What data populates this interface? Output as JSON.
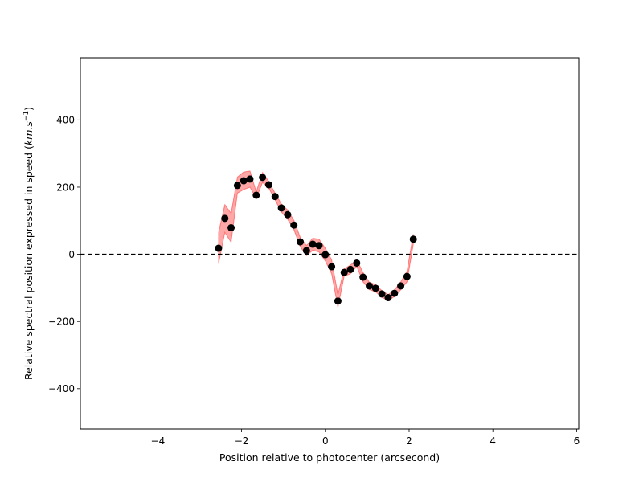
{
  "chart_data": {
    "type": "scatter",
    "xlabel": "Position relative to photocenter (arcsecond)",
    "ylabel_parts": {
      "prefix": "Relative spectral position expressed in speed (",
      "unit_base": "km.s",
      "unit_exponent": "−1",
      "suffix": ")"
    },
    "xlim": [
      -5.85,
      6.05
    ],
    "ylim": [
      -520,
      585
    ],
    "x_ticks": [
      -4,
      -2,
      0,
      2,
      4,
      6
    ],
    "x_tick_labels": [
      "−4",
      "−2",
      "0",
      "2",
      "4",
      "6"
    ],
    "y_ticks": [
      -400,
      -200,
      0,
      200,
      400
    ],
    "y_tick_labels": [
      "−400",
      "−200",
      "0",
      "200",
      "400"
    ],
    "reference_line_y": 0,
    "grid": false,
    "colors": {
      "points": "#000000",
      "band": "#ff0000",
      "reference_line": "#000000"
    },
    "series": [
      {
        "x": [
          -2.55,
          -2.4,
          -2.25,
          -2.1,
          -1.95,
          -1.8,
          -1.65,
          -1.5,
          -1.35,
          -1.2,
          -1.05,
          -0.9,
          -0.75,
          -0.6,
          -0.45,
          -0.3,
          -0.15,
          0.0,
          0.15,
          0.3,
          0.45,
          0.6,
          0.75,
          0.9,
          1.05,
          1.2,
          1.35,
          1.5,
          1.65,
          1.8,
          1.95,
          2.1
        ],
        "y": [
          18,
          107,
          79,
          205,
          219,
          224,
          176,
          229,
          207,
          172,
          138,
          118,
          87,
          37,
          11,
          30,
          26,
          -1,
          -37,
          -139,
          -54,
          -45,
          -26,
          -68,
          -94,
          -101,
          -118,
          -129,
          -116,
          -94,
          -66,
          45
        ],
        "y_lower": [
          -28,
          65,
          36,
          182,
          193,
          200,
          166,
          214,
          197,
          162,
          126,
          104,
          73,
          23,
          -4,
          12,
          7,
          -20,
          -58,
          -158,
          -65,
          -58,
          -36,
          -82,
          -105,
          -112,
          -128,
          -138,
          -126,
          -106,
          -82,
          30
        ],
        "y_upper": [
          65,
          148,
          122,
          230,
          245,
          248,
          186,
          244,
          217,
          182,
          150,
          132,
          101,
          51,
          26,
          48,
          45,
          18,
          -16,
          -120,
          -43,
          -32,
          -16,
          -54,
          -83,
          -90,
          -108,
          -120,
          -106,
          -82,
          -50,
          60
        ]
      }
    ]
  }
}
